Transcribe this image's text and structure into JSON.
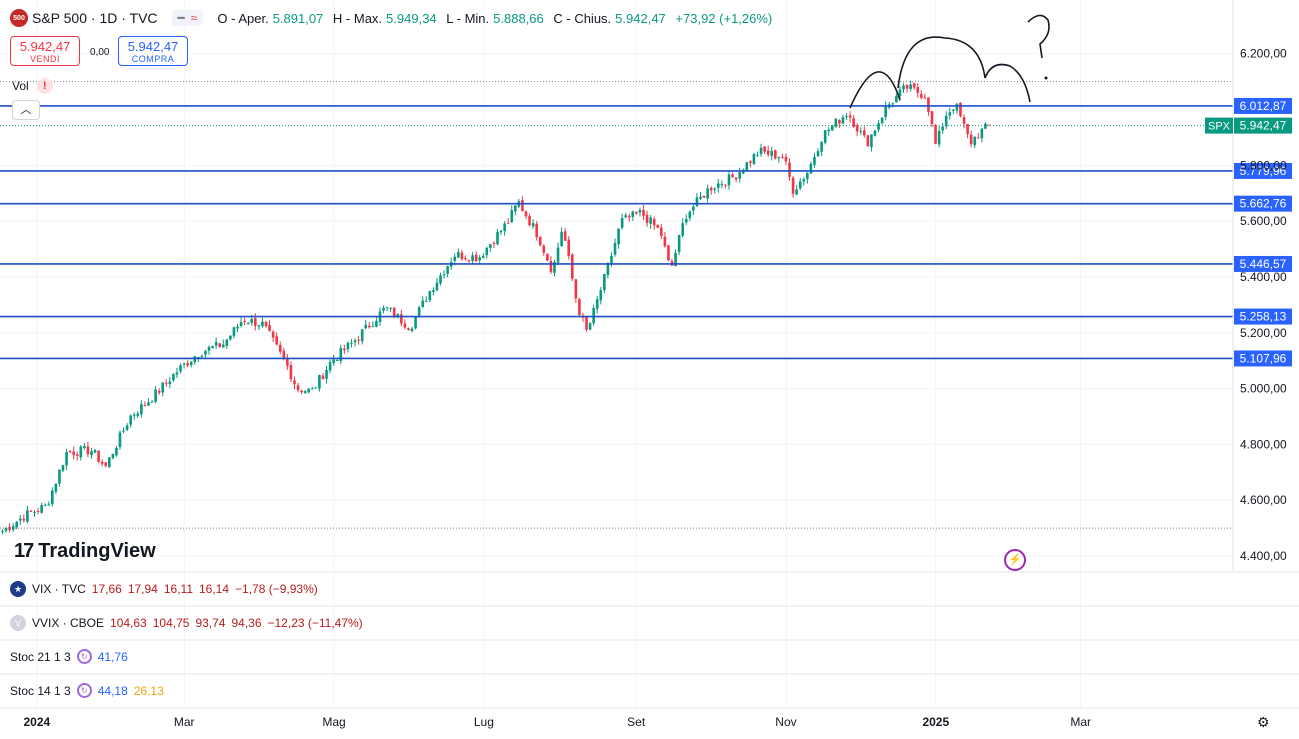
{
  "header": {
    "logo_text": "500",
    "symbol": "S&P 500 · 1D · TVC",
    "open_label": "O - Aper.",
    "open": "5.891,07",
    "high_label": "H - Max.",
    "high": "5.949,34",
    "low_label": "L - Min.",
    "low": "5.888,66",
    "close_label": "C - Chius.",
    "close": "5.942,47",
    "change": "+73,92 (+1,26%)"
  },
  "trade": {
    "sell_price": "5.942,47",
    "sell_label": "VENDI",
    "spread": "0,00",
    "buy_price": "5.942,47",
    "buy_label": "COMPRA"
  },
  "volume": {
    "label": "Vol",
    "warning": "!"
  },
  "brand": {
    "name": "TradingView"
  },
  "colors": {
    "up": "#089981",
    "down": "#f23645",
    "level_line": "#1e4fc4",
    "level_bg": "#2962ff",
    "price_tag": "#089981"
  },
  "chart_data": {
    "type": "candlestick",
    "ylim": [
      4400,
      6260
    ],
    "yticks": [
      "6.200,00",
      "5.800,00",
      "5.600,00",
      "5.400,00",
      "5.200,00",
      "5.000,00",
      "4.800,00",
      "4.600,00",
      "4.400,00"
    ],
    "ytick_values": [
      6200,
      5800,
      5600,
      5400,
      5200,
      5000,
      4800,
      4600,
      4400
    ],
    "xticks": [
      "2024",
      "Mar",
      "Mag",
      "Lug",
      "Set",
      "Nov",
      "2025",
      "Mar"
    ],
    "xtick_days": [
      0,
      60,
      121,
      182,
      244,
      305,
      366,
      425
    ],
    "xlim_days": [
      -15,
      487
    ],
    "current_price": {
      "label": "SPX",
      "value": "5.942,47",
      "y": 5942.47
    },
    "levels": [
      {
        "label": "6.012,87",
        "value": 6012.87
      },
      {
        "label": "5.779,96",
        "value": 5779.96
      },
      {
        "label": "5.662,76",
        "value": 5662.76
      },
      {
        "label": "5.446,57",
        "value": 5446.57
      },
      {
        "label": "5.258,13",
        "value": 5258.13
      },
      {
        "label": "5.107,96",
        "value": 5107.96
      }
    ],
    "dotted_levels": [
      6100,
      4500
    ],
    "anchors": [
      [
        -14,
        4490
      ],
      [
        -4,
        4550
      ],
      [
        4,
        4580
      ],
      [
        12,
        4770
      ],
      [
        22,
        4780
      ],
      [
        28,
        4720
      ],
      [
        38,
        4900
      ],
      [
        46,
        4960
      ],
      [
        58,
        5070
      ],
      [
        66,
        5130
      ],
      [
        76,
        5160
      ],
      [
        84,
        5250
      ],
      [
        92,
        5230
      ],
      [
        102,
        5080
      ],
      [
        106,
        5000
      ],
      [
        112,
        4990
      ],
      [
        120,
        5100
      ],
      [
        128,
        5160
      ],
      [
        142,
        5290
      ],
      [
        152,
        5220
      ],
      [
        160,
        5350
      ],
      [
        170,
        5480
      ],
      [
        180,
        5470
      ],
      [
        192,
        5600
      ],
      [
        196,
        5670
      ],
      [
        204,
        5550
      ],
      [
        210,
        5420
      ],
      [
        214,
        5580
      ],
      [
        220,
        5300
      ],
      [
        224,
        5200
      ],
      [
        232,
        5420
      ],
      [
        238,
        5600
      ],
      [
        246,
        5630
      ],
      [
        254,
        5560
      ],
      [
        258,
        5420
      ],
      [
        264,
        5620
      ],
      [
        274,
        5720
      ],
      [
        284,
        5760
      ],
      [
        294,
        5850
      ],
      [
        304,
        5830
      ],
      [
        308,
        5710
      ],
      [
        314,
        5780
      ],
      [
        320,
        5910
      ],
      [
        330,
        5990
      ],
      [
        338,
        5880
      ],
      [
        346,
        6010
      ],
      [
        354,
        6080
      ],
      [
        362,
        6050
      ],
      [
        366,
        5870
      ],
      [
        370,
        5980
      ],
      [
        374,
        6020
      ],
      [
        380,
        5880
      ],
      [
        384,
        5920
      ],
      [
        388,
        5942
      ]
    ]
  },
  "panes": [
    {
      "name": "VIX · TVC",
      "values": [
        "17,66",
        "17,94",
        "16,11",
        "16,14",
        "−1,78 (−9,93%)"
      ]
    },
    {
      "name": "VVIX · CBOE",
      "values": [
        "104,63",
        "104,75",
        "93,74",
        "94,36",
        "−12,23 (−11,47%)"
      ]
    },
    {
      "name": "Stoc 21 1 3",
      "values": [
        "41,76"
      ]
    },
    {
      "name": "Stoc 14 1 3",
      "values": [
        "44,18",
        "26,13"
      ]
    }
  ]
}
